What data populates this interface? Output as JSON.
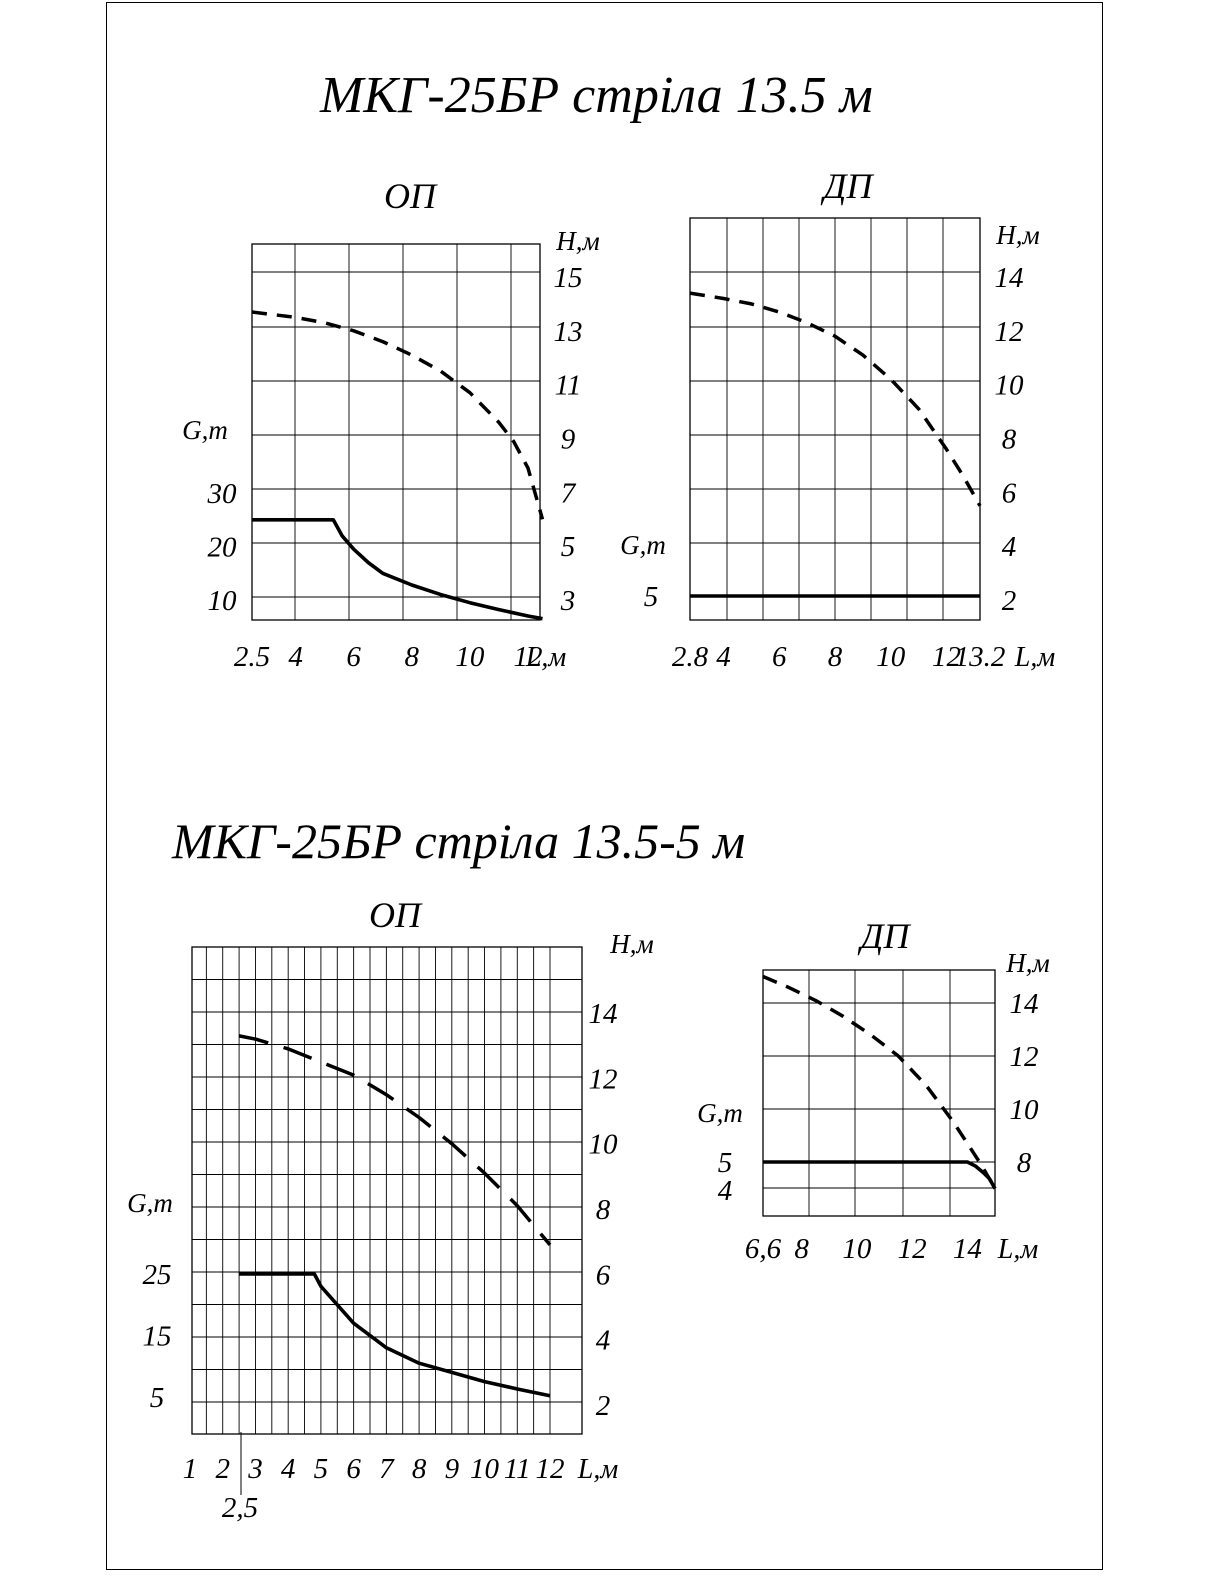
{
  "titles": {
    "top": "МКГ-25БР стріла 13.5 м",
    "bottom": "МКГ-25БР стріла 13.5-5 м"
  },
  "colors": {
    "ink": "#000000",
    "background": "#ffffff"
  },
  "chart_data": [
    {
      "type": "line",
      "title": "ОП",
      "xlabel": "L,м",
      "ylabel_left": "G,т",
      "ylabel_right": "H,м",
      "x_ticks": [
        "2.5",
        "4",
        "6",
        "8",
        "10",
        "12"
      ],
      "y_left_ticks": [
        "10",
        "20",
        "30"
      ],
      "y_right_ticks": [
        "3",
        "5",
        "7",
        "9",
        "11",
        "13",
        "15"
      ],
      "grid": true,
      "series": [
        {
          "axis": "right",
          "style": "dashed",
          "x": [
            2.5,
            4,
            5,
            6,
            7,
            8,
            9,
            10,
            11,
            11.5,
            12,
            12.5
          ],
          "y": [
            13.7,
            13.5,
            13.3,
            13.0,
            12.6,
            12.1,
            11.5,
            10.7,
            9.6,
            8.9,
            7.9,
            6.0
          ]
        },
        {
          "axis": "left",
          "style": "solid",
          "x": [
            2.5,
            3,
            4,
            5,
            5.3,
            5.6,
            6,
            6.5,
            7,
            8,
            9,
            10,
            11,
            12,
            12.5
          ],
          "y": [
            25,
            25,
            25,
            25,
            25,
            22,
            19.5,
            17,
            15,
            12.8,
            11,
            9.5,
            8.2,
            7,
            6.5
          ]
        }
      ]
    },
    {
      "type": "line",
      "title": "ДП",
      "xlabel": "L,м",
      "ylabel_left": "G,т",
      "ylabel_right": "H,м",
      "x_ticks": [
        "2.8",
        "4",
        "6",
        "8",
        "10",
        "12",
        "13.2"
      ],
      "y_left_ticks": [
        "5"
      ],
      "y_right_ticks": [
        "2",
        "4",
        "6",
        "8",
        "10",
        "12",
        "14"
      ],
      "grid": true,
      "series": [
        {
          "axis": "right",
          "style": "dashed",
          "x": [
            2.8,
            4,
            5,
            6,
            7,
            8,
            9,
            10,
            11,
            12,
            12.6,
            13.2
          ],
          "y": [
            13.4,
            13.2,
            13.0,
            12.7,
            12.3,
            11.8,
            11.1,
            10.2,
            9.1,
            7.6,
            6.6,
            5.5
          ]
        },
        {
          "axis": "left",
          "style": "solid",
          "x": [
            2.8,
            13.2
          ],
          "y": [
            5,
            5
          ]
        }
      ]
    },
    {
      "type": "line",
      "title": "ОП",
      "xlabel": "L,м",
      "ylabel_left": "G,т",
      "ylabel_right": "H,м",
      "x_ticks": [
        "1",
        "2",
        "3",
        "4",
        "5",
        "6",
        "7",
        "8",
        "9",
        "10",
        "11",
        "12"
      ],
      "x_extra_label": "2,5",
      "y_left_ticks": [
        "5",
        "15",
        "25"
      ],
      "y_right_ticks": [
        "2",
        "4",
        "6",
        "8",
        "10",
        "12",
        "14"
      ],
      "grid": true,
      "series": [
        {
          "axis": "right",
          "style": "dashed",
          "x": [
            2.5,
            3,
            4,
            5,
            6,
            7,
            8,
            9,
            10,
            11,
            12
          ],
          "y": [
            13.3,
            13.2,
            12.9,
            12.5,
            12.1,
            11.5,
            10.8,
            10.0,
            9.1,
            8.1,
            6.9
          ]
        },
        {
          "axis": "left",
          "style": "solid",
          "x": [
            2.5,
            3,
            4,
            4.8,
            5,
            5.5,
            6,
            7,
            8,
            9,
            10,
            11,
            12
          ],
          "y": [
            25,
            25,
            25,
            25,
            23,
            20,
            17,
            13,
            10.5,
            9,
            7.5,
            6.3,
            5.2
          ]
        }
      ]
    },
    {
      "type": "line",
      "title": "ДП",
      "xlabel": "L,м",
      "ylabel_left": "G,т",
      "ylabel_right": "H,м",
      "x_ticks": [
        "6,6",
        "8",
        "10",
        "12",
        "14"
      ],
      "y_left_ticks": [
        "4",
        "5"
      ],
      "y_right_ticks": [
        "8",
        "10",
        "12",
        "14"
      ],
      "grid": true,
      "series": [
        {
          "axis": "right",
          "style": "dashed",
          "x": [
            6.6,
            7.5,
            8.5,
            9.5,
            10.5,
            11.5,
            12.5,
            13.5,
            14.5,
            15.0
          ],
          "y": [
            15.0,
            14.6,
            14.1,
            13.5,
            12.8,
            12.0,
            10.9,
            9.5,
            7.9,
            7.0
          ]
        },
        {
          "axis": "left",
          "style": "solid",
          "x": [
            6.6,
            14.0,
            14.3,
            14.6,
            14.8,
            15.0
          ],
          "y": [
            5,
            5,
            4.85,
            4.6,
            4.4,
            4.05
          ]
        }
      ]
    }
  ]
}
